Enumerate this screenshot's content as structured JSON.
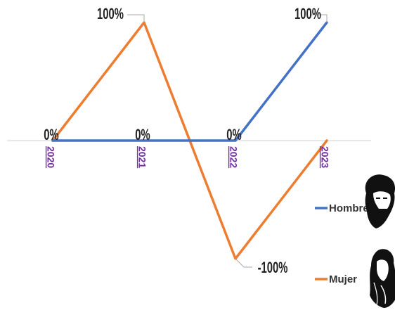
{
  "chart_data": {
    "type": "line",
    "categories": [
      "2020",
      "2021",
      "2022",
      "2023"
    ],
    "series": [
      {
        "name": "Hombre",
        "values": [
          0,
          0,
          0,
          100
        ],
        "labels": [
          "0%",
          "0%",
          "0%",
          "100%"
        ],
        "color": "#4472C4"
      },
      {
        "name": "Mujer",
        "values": [
          0,
          100,
          -100,
          0
        ],
        "labels": [
          "",
          "100%",
          "-100%",
          ""
        ],
        "color": "#ED7D31"
      }
    ],
    "ylim": [
      -100,
      100
    ],
    "grid": false,
    "legend": "right",
    "legend_icons": [
      "man-portrait-icon",
      "woman-portrait-icon"
    ],
    "title": "",
    "xlabel": "",
    "ylabel": ""
  }
}
